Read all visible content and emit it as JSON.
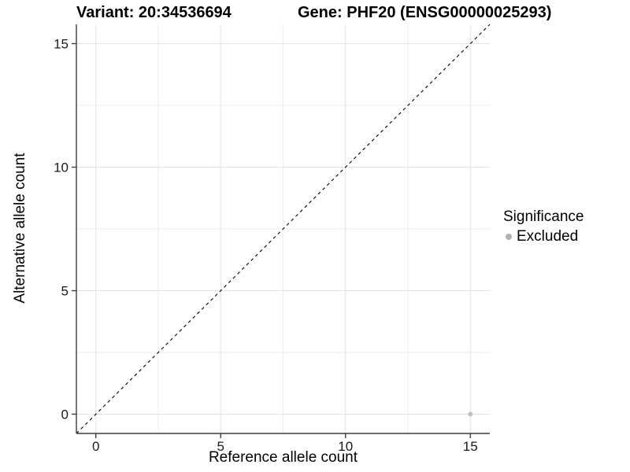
{
  "header": {
    "variant_title": "Variant: 20:34536694",
    "gene_title": "Gene: PHF20 (ENSG00000025293)"
  },
  "legend": {
    "title": "Significance",
    "items": [
      {
        "label": "Excluded",
        "color": "#b2b2b2"
      }
    ]
  },
  "chart_data": {
    "type": "scatter",
    "title": "Variant: 20:34536694 / Gene: PHF20 (ENSG00000025293)",
    "xlabel": "Reference allele count",
    "ylabel": "Alternative allele count",
    "xlim": [
      -0.78,
      15.78
    ],
    "ylim": [
      -0.78,
      15.78
    ],
    "x_ticks": [
      0,
      5,
      10,
      15
    ],
    "y_ticks": [
      0,
      5,
      10,
      15
    ],
    "x_minor_ticks": [
      2.5,
      7.5,
      12.5
    ],
    "y_minor_ticks": [
      2.5,
      7.5,
      12.5
    ],
    "grid": "major+minor",
    "legend_position": "right",
    "identity_line": {
      "show": true,
      "style": "dashed",
      "color": "#000000"
    },
    "series": [
      {
        "name": "Excluded",
        "color": "#c1c1c1",
        "points": [
          {
            "x": 15,
            "y": 0
          }
        ]
      }
    ]
  },
  "style": {
    "background": "#ffffff",
    "grid_major_color": "#e3e3e3",
    "grid_minor_color": "#eeeeee",
    "axis_color": "#3d3d3d",
    "tick_label_color": "#1a1a1a",
    "dash_color": "#000000"
  }
}
